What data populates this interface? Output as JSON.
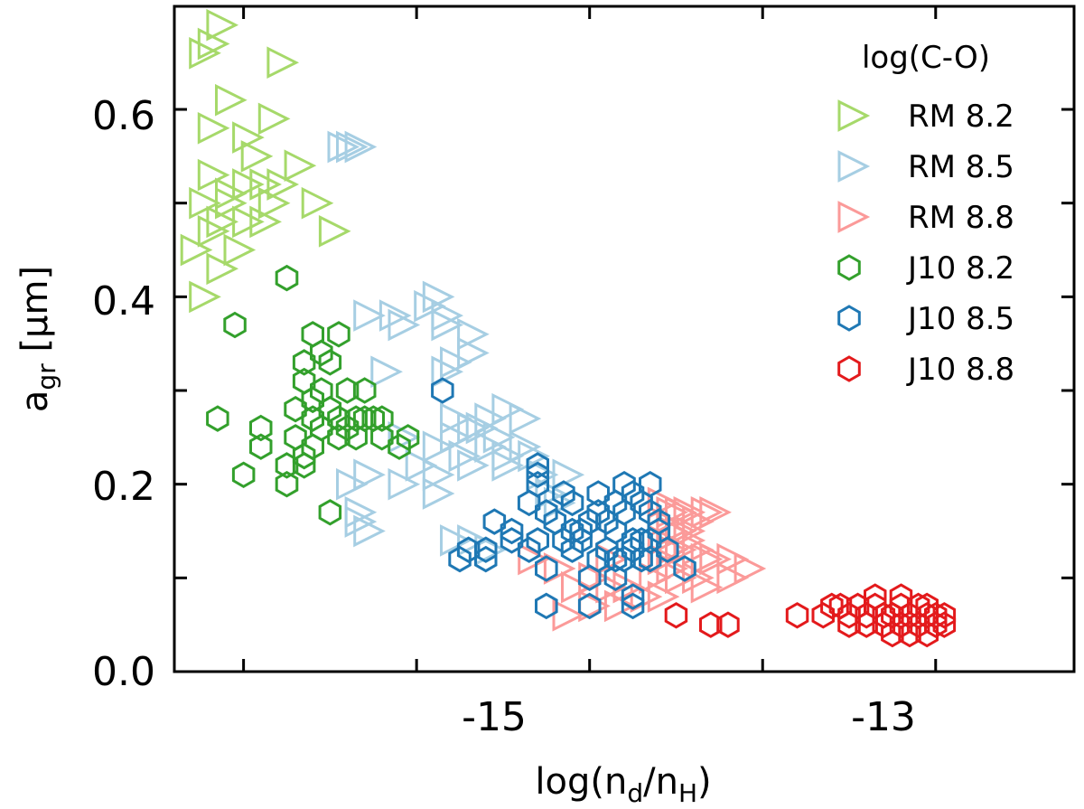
{
  "chart_data": {
    "type": "scatter",
    "xlabel": {
      "base": "log(n",
      "sub1": "d",
      "mid": "/n",
      "sub2": "H",
      "end": ")"
    },
    "ylabel": {
      "base": "a",
      "sub": "gr",
      "rest": " [µm]"
    },
    "xlim": [
      -16.4,
      -11.2
    ],
    "ylim": [
      0.0,
      0.71
    ],
    "x_major_ticks": [
      -15,
      -13
    ],
    "x_major_tick_labels": [
      "-15",
      "-13"
    ],
    "x_minor_ticks": [
      -16,
      -14,
      -12
    ],
    "y_major_ticks": [
      0.0,
      0.2,
      0.4,
      0.6
    ],
    "y_major_tick_labels": [
      "0.0",
      "0.2",
      "0.4",
      "0.6"
    ],
    "y_minor_ticks": [
      0.1,
      0.3,
      0.5
    ],
    "legend": {
      "title": "log(C-O)",
      "position": "top-right"
    },
    "series": [
      {
        "name": "RM 8.2",
        "marker": "triangle-right",
        "color": "#a6d96a",
        "points": [
          [
            -16.25,
            0.66
          ],
          [
            -16.15,
            0.69
          ],
          [
            -16.2,
            0.67
          ],
          [
            -15.8,
            0.65
          ],
          [
            -16.1,
            0.61
          ],
          [
            -16.2,
            0.58
          ],
          [
            -16.0,
            0.57
          ],
          [
            -15.85,
            0.59
          ],
          [
            -15.7,
            0.54
          ],
          [
            -15.6,
            0.5
          ],
          [
            -16.2,
            0.53
          ],
          [
            -16.1,
            0.51
          ],
          [
            -16.0,
            0.52
          ],
          [
            -15.9,
            0.52
          ],
          [
            -15.8,
            0.52
          ],
          [
            -15.85,
            0.5
          ],
          [
            -16.15,
            0.48
          ],
          [
            -16.0,
            0.48
          ],
          [
            -15.9,
            0.48
          ],
          [
            -15.5,
            0.47
          ],
          [
            -16.2,
            0.47
          ],
          [
            -16.05,
            0.45
          ],
          [
            -16.15,
            0.43
          ],
          [
            -16.25,
            0.4
          ],
          [
            -16.1,
            0.5
          ],
          [
            -15.95,
            0.55
          ],
          [
            -16.25,
            0.5
          ],
          [
            -16.3,
            0.45
          ]
        ]
      },
      {
        "name": "RM 8.5",
        "marker": "triangle-right",
        "color": "#a6cee3",
        "points": [
          [
            -15.45,
            0.56
          ],
          [
            -15.35,
            0.56
          ],
          [
            -15.4,
            0.56
          ],
          [
            -15.3,
            0.38
          ],
          [
            -15.15,
            0.38
          ],
          [
            -15.1,
            0.37
          ],
          [
            -14.95,
            0.39
          ],
          [
            -14.9,
            0.4
          ],
          [
            -14.85,
            0.38
          ],
          [
            -14.85,
            0.37
          ],
          [
            -14.7,
            0.36
          ],
          [
            -15.2,
            0.32
          ],
          [
            -14.8,
            0.33
          ],
          [
            -14.85,
            0.32
          ],
          [
            -14.7,
            0.34
          ],
          [
            -14.8,
            0.27
          ],
          [
            -14.7,
            0.26
          ],
          [
            -14.6,
            0.27
          ],
          [
            -14.5,
            0.28
          ],
          [
            -14.4,
            0.27
          ],
          [
            -14.9,
            0.24
          ],
          [
            -14.8,
            0.25
          ],
          [
            -14.75,
            0.23
          ],
          [
            -14.6,
            0.24
          ],
          [
            -14.5,
            0.23
          ],
          [
            -14.4,
            0.24
          ],
          [
            -14.35,
            0.23
          ],
          [
            -15.1,
            0.25
          ],
          [
            -15.0,
            0.22
          ],
          [
            -14.9,
            0.21
          ],
          [
            -14.7,
            0.22
          ],
          [
            -14.5,
            0.22
          ],
          [
            -14.3,
            0.21
          ],
          [
            -14.2,
            0.18
          ],
          [
            -14.15,
            0.21
          ],
          [
            -14.25,
            0.19
          ],
          [
            -14.9,
            0.19
          ],
          [
            -15.1,
            0.2
          ],
          [
            -15.3,
            0.21
          ],
          [
            -15.4,
            0.2
          ],
          [
            -15.35,
            0.17
          ],
          [
            -15.3,
            0.15
          ],
          [
            -15.35,
            0.16
          ],
          [
            -14.7,
            0.14
          ],
          [
            -14.6,
            0.13
          ],
          [
            -14.8,
            0.14
          ],
          [
            -14.65,
            0.26
          ],
          [
            -14.55,
            0.25
          ]
        ]
      },
      {
        "name": "RM 8.8",
        "marker": "triangle-right",
        "color": "#fb9a99",
        "points": [
          [
            -13.6,
            0.18
          ],
          [
            -13.55,
            0.17
          ],
          [
            -13.5,
            0.17
          ],
          [
            -13.45,
            0.17
          ],
          [
            -13.4,
            0.16
          ],
          [
            -13.35,
            0.17
          ],
          [
            -13.3,
            0.17
          ],
          [
            -13.6,
            0.16
          ],
          [
            -13.5,
            0.15
          ],
          [
            -13.45,
            0.14
          ],
          [
            -13.6,
            0.14
          ],
          [
            -13.55,
            0.13
          ],
          [
            -13.5,
            0.13
          ],
          [
            -13.4,
            0.13
          ],
          [
            -13.35,
            0.12
          ],
          [
            -13.3,
            0.12
          ],
          [
            -13.2,
            0.12
          ],
          [
            -13.1,
            0.11
          ],
          [
            -13.2,
            0.1
          ],
          [
            -13.6,
            0.12
          ],
          [
            -13.55,
            0.11
          ],
          [
            -13.5,
            0.1
          ],
          [
            -13.65,
            0.1
          ],
          [
            -13.8,
            0.09
          ],
          [
            -13.4,
            0.1
          ],
          [
            -13.35,
            0.09
          ],
          [
            -13.6,
            0.08
          ],
          [
            -13.7,
            0.08
          ],
          [
            -14.35,
            0.12
          ],
          [
            -14.2,
            0.11
          ],
          [
            -14.0,
            0.1
          ],
          [
            -14.1,
            0.09
          ],
          [
            -13.9,
            0.09
          ],
          [
            -13.85,
            0.07
          ],
          [
            -14.0,
            0.07
          ],
          [
            -14.15,
            0.06
          ],
          [
            -13.9,
            0.12
          ],
          [
            -13.45,
            0.15
          ],
          [
            -13.55,
            0.15
          ]
        ]
      },
      {
        "name": "J10 8.2",
        "marker": "hexagon",
        "color": "#33a02c",
        "points": [
          [
            -15.75,
            0.42
          ],
          [
            -16.05,
            0.37
          ],
          [
            -15.6,
            0.36
          ],
          [
            -15.45,
            0.36
          ],
          [
            -15.65,
            0.33
          ],
          [
            -15.55,
            0.34
          ],
          [
            -15.5,
            0.33
          ],
          [
            -15.65,
            0.31
          ],
          [
            -15.55,
            0.3
          ],
          [
            -15.4,
            0.3
          ],
          [
            -15.3,
            0.3
          ],
          [
            -15.7,
            0.28
          ],
          [
            -15.6,
            0.27
          ],
          [
            -15.5,
            0.28
          ],
          [
            -15.45,
            0.27
          ],
          [
            -15.35,
            0.27
          ],
          [
            -15.3,
            0.27
          ],
          [
            -15.25,
            0.27
          ],
          [
            -15.2,
            0.27
          ],
          [
            -15.4,
            0.26
          ],
          [
            -15.55,
            0.26
          ],
          [
            -15.45,
            0.25
          ],
          [
            -15.35,
            0.25
          ],
          [
            -15.9,
            0.26
          ],
          [
            -16.15,
            0.27
          ],
          [
            -15.7,
            0.25
          ],
          [
            -15.6,
            0.24
          ],
          [
            -15.9,
            0.24
          ],
          [
            -15.75,
            0.22
          ],
          [
            -15.65,
            0.22
          ],
          [
            -15.75,
            0.2
          ],
          [
            -16.0,
            0.21
          ],
          [
            -15.05,
            0.25
          ],
          [
            -15.1,
            0.24
          ],
          [
            -15.2,
            0.25
          ],
          [
            -15.5,
            0.17
          ],
          [
            -15.65,
            0.23
          ],
          [
            -15.6,
            0.29
          ]
        ]
      },
      {
        "name": "J10 8.5",
        "marker": "hexagon",
        "color": "#1f78b4",
        "points": [
          [
            -14.85,
            0.3
          ],
          [
            -14.3,
            0.22
          ],
          [
            -14.3,
            0.21
          ],
          [
            -14.3,
            0.2
          ],
          [
            -14.15,
            0.19
          ],
          [
            -14.35,
            0.18
          ],
          [
            -14.25,
            0.17
          ],
          [
            -14.2,
            0.16
          ],
          [
            -14.55,
            0.16
          ],
          [
            -14.45,
            0.15
          ],
          [
            -14.1,
            0.15
          ],
          [
            -14.05,
            0.14
          ],
          [
            -14.1,
            0.13
          ],
          [
            -14.15,
            0.14
          ],
          [
            -14.05,
            0.15
          ],
          [
            -14.0,
            0.16
          ],
          [
            -13.95,
            0.17
          ],
          [
            -13.85,
            0.18
          ],
          [
            -13.9,
            0.16
          ],
          [
            -13.85,
            0.15
          ],
          [
            -13.8,
            0.17
          ],
          [
            -13.75,
            0.19
          ],
          [
            -13.7,
            0.18
          ],
          [
            -13.65,
            0.17
          ],
          [
            -13.6,
            0.16
          ],
          [
            -13.6,
            0.15
          ],
          [
            -13.65,
            0.14
          ],
          [
            -13.7,
            0.14
          ],
          [
            -13.75,
            0.13
          ],
          [
            -13.8,
            0.12
          ],
          [
            -13.85,
            0.12
          ],
          [
            -13.9,
            0.13
          ],
          [
            -13.95,
            0.12
          ],
          [
            -14.0,
            0.1
          ],
          [
            -13.75,
            0.14
          ],
          [
            -13.7,
            0.12
          ],
          [
            -13.65,
            0.12
          ],
          [
            -13.55,
            0.13
          ],
          [
            -13.45,
            0.11
          ],
          [
            -13.85,
            0.1
          ],
          [
            -13.75,
            0.08
          ],
          [
            -14.25,
            0.11
          ],
          [
            -14.35,
            0.13
          ],
          [
            -14.6,
            0.12
          ],
          [
            -14.7,
            0.13
          ],
          [
            -14.75,
            0.12
          ],
          [
            -14.6,
            0.13
          ],
          [
            -14.45,
            0.14
          ],
          [
            -14.3,
            0.14
          ],
          [
            -14.25,
            0.07
          ],
          [
            -14.0,
            0.07
          ],
          [
            -13.75,
            0.07
          ],
          [
            -13.8,
            0.2
          ],
          [
            -13.65,
            0.2
          ],
          [
            -13.95,
            0.19
          ],
          [
            -14.1,
            0.18
          ]
        ]
      },
      {
        "name": "J10 8.8",
        "marker": "hexagon",
        "color": "#e31a1c",
        "points": [
          [
            -13.5,
            0.06
          ],
          [
            -13.3,
            0.05
          ],
          [
            -13.2,
            0.05
          ],
          [
            -12.8,
            0.06
          ],
          [
            -12.65,
            0.06
          ],
          [
            -12.55,
            0.07
          ],
          [
            -12.5,
            0.06
          ],
          [
            -12.45,
            0.07
          ],
          [
            -12.4,
            0.06
          ],
          [
            -12.35,
            0.07
          ],
          [
            -12.3,
            0.06
          ],
          [
            -12.25,
            0.06
          ],
          [
            -12.2,
            0.07
          ],
          [
            -12.15,
            0.06
          ],
          [
            -12.1,
            0.07
          ],
          [
            -12.05,
            0.06
          ],
          [
            -12.0,
            0.06
          ],
          [
            -12.0,
            0.05
          ],
          [
            -12.1,
            0.05
          ],
          [
            -12.2,
            0.05
          ],
          [
            -12.3,
            0.05
          ],
          [
            -12.4,
            0.05
          ],
          [
            -12.5,
            0.05
          ],
          [
            -12.25,
            0.04
          ],
          [
            -12.15,
            0.04
          ],
          [
            -12.05,
            0.04
          ],
          [
            -11.95,
            0.05
          ],
          [
            -11.95,
            0.06
          ],
          [
            -12.35,
            0.08
          ],
          [
            -12.2,
            0.08
          ],
          [
            -12.05,
            0.07
          ],
          [
            -12.6,
            0.07
          ]
        ]
      }
    ]
  }
}
